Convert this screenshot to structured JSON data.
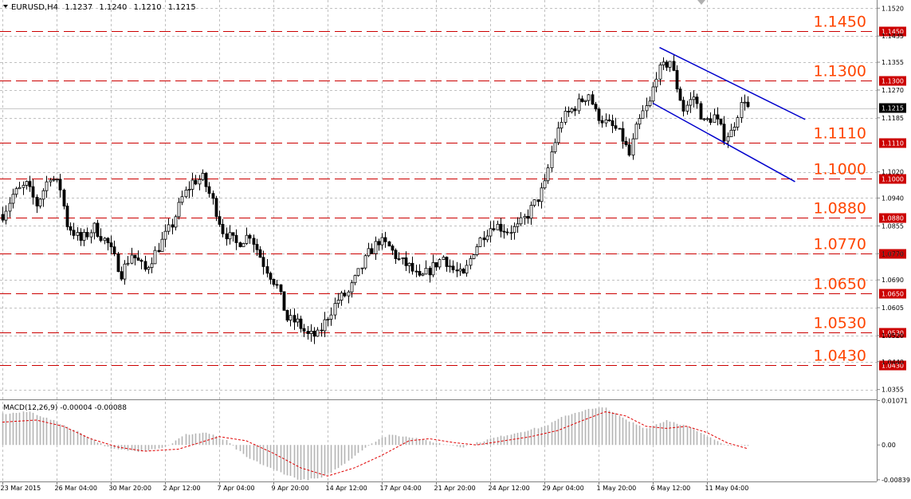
{
  "header": {
    "symbol": "EURUSD,H4",
    "open": "1.1237",
    "high": "1.1240",
    "low": "1.1210",
    "close": "1.1215"
  },
  "colors": {
    "background": "#ffffff",
    "candle": "#000000",
    "grid": "#c0c0c0",
    "level_line": "#cc0000",
    "level_label": "#ff4500",
    "channel": "#0000cc",
    "macd_hist": "#b4b4b4",
    "macd_signal": "#e00000"
  },
  "chart_data": [
    {
      "type": "candlestick",
      "symbol": "EURUSD",
      "timeframe": "H4",
      "ylim": [
        1.0325,
        1.1545
      ],
      "y_ticks": [
        "1.1520",
        "1.1435",
        "1.1355",
        "1.1270",
        "1.1185",
        "1.1020",
        "1.0940",
        "1.0855",
        "1.0770",
        "1.0690",
        "1.0605",
        "1.0520",
        "1.0440",
        "1.0355"
      ],
      "current_price": "1.1215",
      "x_labels": [
        "23 Mar 2015",
        "26 Mar 04:00",
        "30 Mar 20:00",
        "2 Apr 12:00",
        "7 Apr 04:00",
        "9 Apr 20:00",
        "14 Apr 12:00",
        "17 Apr 04:00",
        "21 Apr 20:00",
        "24 Apr 12:00",
        "29 Apr 04:00",
        "1 May 20:00",
        "6 May 12:00",
        "11 May 04:00"
      ],
      "x_label_bars": [
        0,
        16,
        32,
        48,
        64,
        80,
        96,
        112,
        128,
        144,
        160,
        176,
        192,
        208
      ],
      "bar_count": 220,
      "anchors": [
        [
          0,
          1.089
        ],
        [
          3,
          1.095
        ],
        [
          7,
          1.098
        ],
        [
          10,
          1.092
        ],
        [
          14,
          1.101
        ],
        [
          17,
          1.097
        ],
        [
          19,
          1.086
        ],
        [
          23,
          1.081
        ],
        [
          27,
          1.085
        ],
        [
          31,
          1.08
        ],
        [
          35,
          1.071
        ],
        [
          38,
          1.077
        ],
        [
          42,
          1.072
        ],
        [
          46,
          1.079
        ],
        [
          50,
          1.086
        ],
        [
          53,
          1.094
        ],
        [
          56,
          1.099
        ],
        [
          59,
          1.1
        ],
        [
          62,
          1.093
        ],
        [
          65,
          1.084
        ],
        [
          69,
          1.08
        ],
        [
          73,
          1.083
        ],
        [
          77,
          1.074
        ],
        [
          81,
          1.067
        ],
        [
          84,
          1.057
        ],
        [
          87,
          1.056
        ],
        [
          90,
          1.052
        ],
        [
          93,
          1.052
        ],
        [
          96,
          1.058
        ],
        [
          99,
          1.063
        ],
        [
          102,
          1.065
        ],
        [
          105,
          1.071
        ],
        [
          108,
          1.077
        ],
        [
          111,
          1.081
        ],
        [
          114,
          1.079
        ],
        [
          117,
          1.075
        ],
        [
          120,
          1.073
        ],
        [
          123,
          1.069
        ],
        [
          126,
          1.072
        ],
        [
          130,
          1.076
        ],
        [
          133,
          1.072
        ],
        [
          136,
          1.07
        ],
        [
          139,
          1.078
        ],
        [
          142,
          1.083
        ],
        [
          145,
          1.086
        ],
        [
          149,
          1.084
        ],
        [
          152,
          1.085
        ],
        [
          155,
          1.089
        ],
        [
          158,
          1.094
        ],
        [
          160,
          1.098
        ],
        [
          162,
          1.108
        ],
        [
          165,
          1.118
        ],
        [
          168,
          1.121
        ],
        [
          171,
          1.124
        ],
        [
          173,
          1.126
        ],
        [
          175,
          1.12
        ],
        [
          178,
          1.117
        ],
        [
          181,
          1.115
        ],
        [
          183,
          1.112
        ],
        [
          185,
          1.107
        ],
        [
          187,
          1.115
        ],
        [
          189,
          1.12
        ],
        [
          191,
          1.123
        ],
        [
          193,
          1.132
        ],
        [
          195,
          1.134
        ],
        [
          197,
          1.136
        ],
        [
          199,
          1.128
        ],
        [
          201,
          1.121
        ],
        [
          204,
          1.125
        ],
        [
          207,
          1.117
        ],
        [
          210,
          1.119
        ],
        [
          213,
          1.113
        ],
        [
          215,
          1.114
        ],
        [
          217,
          1.12
        ],
        [
          219,
          1.1245
        ],
        [
          220,
          1.1215
        ]
      ]
    },
    {
      "type": "line",
      "role": "support-resistance levels",
      "levels": [
        {
          "value": 1.145,
          "label": "1.1450",
          "tag": "1.1450"
        },
        {
          "value": 1.13,
          "label": "1.1300",
          "tag": "1.1300"
        },
        {
          "value": 1.111,
          "label": "1.1110",
          "tag": "1.1110"
        },
        {
          "value": 1.1,
          "label": "1.1000",
          "tag": "1.1000"
        },
        {
          "value": 1.088,
          "label": "1.0880",
          "tag": "1.0880"
        },
        {
          "value": 1.077,
          "label": "1.0770",
          "tag": "1.0770"
        },
        {
          "value": 1.065,
          "label": "1.0650",
          "tag": "1.0650"
        },
        {
          "value": 1.053,
          "label": "1.0530",
          "tag": "1.0530"
        },
        {
          "value": 1.043,
          "label": "1.0430",
          "tag": "1.0430"
        }
      ]
    },
    {
      "type": "line",
      "role": "descending channel",
      "lines": [
        {
          "x": [
            194,
            237
          ],
          "y": [
            1.14,
            1.118
          ]
        },
        {
          "x": [
            192,
            234
          ],
          "y": [
            1.123,
            1.099
          ]
        }
      ]
    },
    {
      "type": "bar",
      "title": "MACD(12,26,9) -0.00004 -0.00088",
      "ylim": [
        -0.0088,
        0.0108
      ],
      "y_ticks": [
        "0.01071",
        "0.00",
        "-0.00839"
      ],
      "histogram_anchors": [
        [
          0,
          0.0075
        ],
        [
          8,
          0.008
        ],
        [
          16,
          0.0055
        ],
        [
          24,
          0.0025
        ],
        [
          32,
          -0.001
        ],
        [
          40,
          -0.0015
        ],
        [
          48,
          -0.0005
        ],
        [
          54,
          0.0025
        ],
        [
          60,
          0.003
        ],
        [
          66,
          0.001
        ],
        [
          72,
          -0.003
        ],
        [
          80,
          -0.006
        ],
        [
          88,
          -0.0085
        ],
        [
          94,
          -0.008
        ],
        [
          100,
          -0.005
        ],
        [
          108,
          0.0
        ],
        [
          114,
          0.0025
        ],
        [
          120,
          0.002
        ],
        [
          128,
          0.0005
        ],
        [
          136,
          -0.0005
        ],
        [
          144,
          0.0015
        ],
        [
          152,
          0.003
        ],
        [
          160,
          0.0045
        ],
        [
          166,
          0.007
        ],
        [
          172,
          0.0085
        ],
        [
          178,
          0.009
        ],
        [
          184,
          0.006
        ],
        [
          190,
          0.004
        ],
        [
          196,
          0.006
        ],
        [
          202,
          0.0045
        ],
        [
          208,
          0.002
        ],
        [
          214,
          0.0
        ],
        [
          220,
          -4e-05
        ]
      ],
      "signal_anchors": [
        [
          0,
          0.0055
        ],
        [
          10,
          0.006
        ],
        [
          18,
          0.0045
        ],
        [
          26,
          0.0015
        ],
        [
          34,
          -0.0005
        ],
        [
          42,
          -0.0015
        ],
        [
          52,
          -0.001
        ],
        [
          58,
          0.0005
        ],
        [
          64,
          0.002
        ],
        [
          72,
          0.001
        ],
        [
          80,
          -0.002
        ],
        [
          88,
          -0.0055
        ],
        [
          96,
          -0.0075
        ],
        [
          104,
          -0.0055
        ],
        [
          112,
          -0.0025
        ],
        [
          120,
          0.001
        ],
        [
          126,
          0.0015
        ],
        [
          134,
          0.0005
        ],
        [
          140,
          0.0
        ],
        [
          148,
          0.001
        ],
        [
          156,
          0.002
        ],
        [
          164,
          0.0035
        ],
        [
          170,
          0.0055
        ],
        [
          178,
          0.008
        ],
        [
          184,
          0.007
        ],
        [
          190,
          0.0045
        ],
        [
          196,
          0.004
        ],
        [
          202,
          0.0045
        ],
        [
          208,
          0.003
        ],
        [
          214,
          0.0005
        ],
        [
          220,
          -0.00088
        ]
      ]
    }
  ]
}
